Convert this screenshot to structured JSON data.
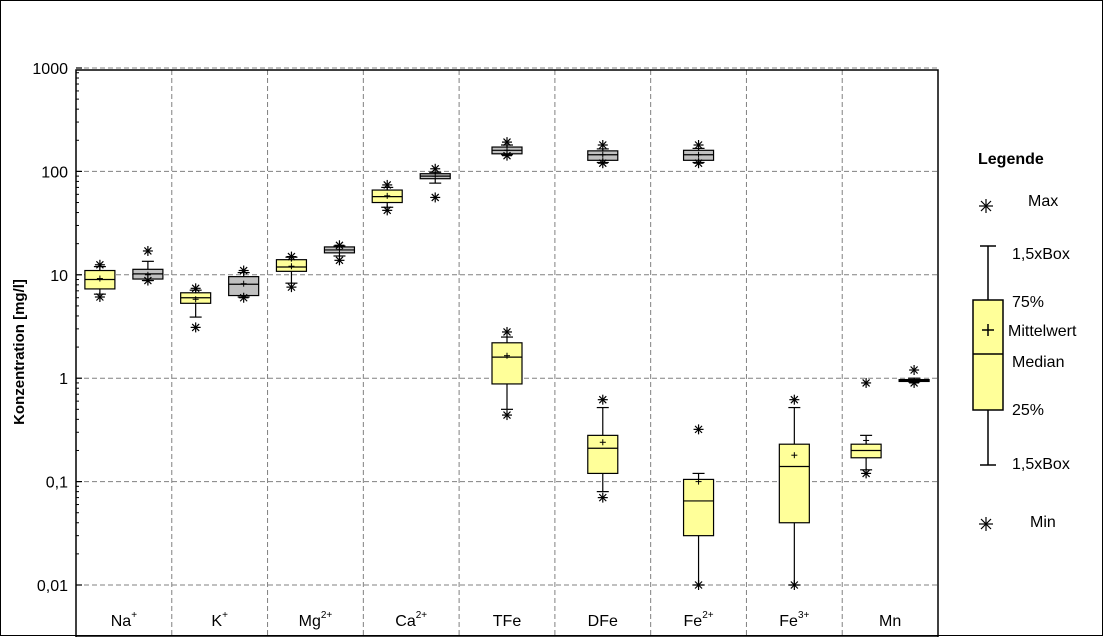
{
  "chart_data": {
    "type": "box",
    "ylabel": "Konzentration [mg/l]",
    "yscale": "log",
    "ylim": [
      0.01,
      1000
    ],
    "yticks": [
      {
        "value": 1000,
        "label": "1000"
      },
      {
        "value": 100,
        "label": "100"
      },
      {
        "value": 10,
        "label": "10"
      },
      {
        "value": 1,
        "label": "1"
      },
      {
        "value": 0.1,
        "label": "0,1"
      },
      {
        "value": 0.01,
        "label": "0,01"
      }
    ],
    "grid": true,
    "categories": [
      {
        "base": "Na",
        "sup": "+"
      },
      {
        "base": "K",
        "sup": "+"
      },
      {
        "base": "Mg",
        "sup": "2+"
      },
      {
        "base": "Ca",
        "sup": "2+"
      },
      {
        "base": "TFe",
        "sup": ""
      },
      {
        "base": "DFe",
        "sup": ""
      },
      {
        "base": "Fe",
        "sup": "2+"
      },
      {
        "base": "Fe",
        "sup": "3+"
      },
      {
        "base": "Mn",
        "sup": ""
      }
    ],
    "colors": {
      "yellow": "#ffff99",
      "gray": "#c0c0c0"
    },
    "boxes": [
      {
        "category": 0,
        "offset": -1,
        "color": "yellow",
        "whisker_low": 6.5,
        "q1": 7.3,
        "median": 9.0,
        "q3": 11.0,
        "whisker_high": 12.0,
        "mean": 9.2,
        "min": 6.1,
        "max": 12.5
      },
      {
        "category": 0,
        "offset": 1,
        "color": "gray",
        "whisker_low": 8.8,
        "q1": 9.1,
        "median": 10.2,
        "q3": 11.3,
        "whisker_high": 13.5,
        "mean": 10.0,
        "min": 8.8,
        "max": 17.0
      },
      {
        "category": 1,
        "offset": -1,
        "color": "yellow",
        "whisker_low": 3.9,
        "q1": 5.3,
        "median": 6.0,
        "q3": 6.7,
        "whisker_high": 7.1,
        "mean": 5.8,
        "min": 3.1,
        "max": 7.4
      },
      {
        "category": 1,
        "offset": 1,
        "color": "gray",
        "whisker_low": 6.1,
        "q1": 6.3,
        "median": 8.1,
        "q3": 9.6,
        "whisker_high": 10.5,
        "mean": 8.2,
        "min": 6.0,
        "max": 11.0
      },
      {
        "category": 2,
        "offset": -1,
        "color": "yellow",
        "whisker_low": 8.3,
        "q1": 10.8,
        "median": 11.9,
        "q3": 14.0,
        "whisker_high": 14.8,
        "mean": 12.1,
        "min": 7.6,
        "max": 15.0
      },
      {
        "category": 2,
        "offset": 1,
        "color": "gray",
        "whisker_low": 15.2,
        "q1": 16.3,
        "median": 17.4,
        "q3": 18.6,
        "whisker_high": 19.0,
        "mean": 17.5,
        "min": 13.8,
        "max": 19.3
      },
      {
        "category": 3,
        "offset": -1,
        "color": "yellow",
        "whisker_low": 45,
        "q1": 50,
        "median": 57,
        "q3": 66,
        "whisker_high": 70,
        "mean": 58,
        "min": 42,
        "max": 74
      },
      {
        "category": 3,
        "offset": 1,
        "color": "gray",
        "whisker_low": 77,
        "q1": 85,
        "median": 90,
        "q3": 95,
        "whisker_high": 98,
        "mean": 90,
        "min": 56,
        "max": 106
      },
      {
        "category": 4,
        "offset": 0,
        "color": "gray",
        "whisker_low": 145,
        "q1": 148,
        "median": 160,
        "q3": 172,
        "whisker_high": 180,
        "mean": 160,
        "min": 142,
        "max": 192
      },
      {
        "category": 5,
        "offset": 0,
        "color": "gray",
        "whisker_low": 122,
        "q1": 128,
        "median": 145,
        "q3": 158,
        "whisker_high": 165,
        "mean": 145,
        "min": 120,
        "max": 180
      },
      {
        "category": 6,
        "offset": 0,
        "color": "gray",
        "whisker_low": 122,
        "q1": 128,
        "median": 145,
        "q3": 160,
        "whisker_high": 167,
        "mean": 145,
        "min": 120,
        "max": 180
      },
      {
        "category": 4,
        "offset": 0,
        "color": "yellow",
        "whisker_low": 0.5,
        "q1": 0.88,
        "median": 1.6,
        "q3": 2.2,
        "whisker_high": 2.5,
        "mean": 1.65,
        "min": 0.44,
        "max": 2.8
      },
      {
        "category": 5,
        "offset": 0,
        "color": "yellow",
        "whisker_low": 0.08,
        "q1": 0.12,
        "median": 0.21,
        "q3": 0.28,
        "whisker_high": 0.52,
        "mean": 0.24,
        "min": 0.07,
        "max": 0.62
      },
      {
        "category": 6,
        "offset": 0,
        "color": "yellow",
        "whisker_low": 0.01,
        "q1": 0.03,
        "median": 0.065,
        "q3": 0.105,
        "whisker_high": 0.12,
        "mean": 0.1,
        "min": 0.01,
        "max": 0.32
      },
      {
        "category": 7,
        "offset": 0,
        "color": "yellow",
        "whisker_low": 0.01,
        "q1": 0.04,
        "median": 0.14,
        "q3": 0.23,
        "whisker_high": 0.52,
        "mean": 0.18,
        "min": 0.01,
        "max": 0.62
      },
      {
        "category": 8,
        "offset": -1,
        "color": "yellow",
        "whisker_low": 0.13,
        "q1": 0.17,
        "median": 0.2,
        "q3": 0.23,
        "whisker_high": 0.28,
        "mean": 0.25,
        "min": 0.12,
        "max": 0.9
      },
      {
        "category": 8,
        "offset": 1,
        "color": "gray",
        "whisker_low": 0.92,
        "q1": 0.93,
        "median": 0.95,
        "q3": 0.97,
        "whisker_high": 1.0,
        "mean": 0.95,
        "min": 0.9,
        "max": 1.2
      }
    ],
    "legend": {
      "title": "Legende",
      "max": "Max",
      "whisker_top": "1,5xBox",
      "q3": "75%",
      "mean": "Mittelwert",
      "median": "Median",
      "q1": "25%",
      "whisker_bottom": "1,5xBox",
      "min": "Min"
    }
  }
}
